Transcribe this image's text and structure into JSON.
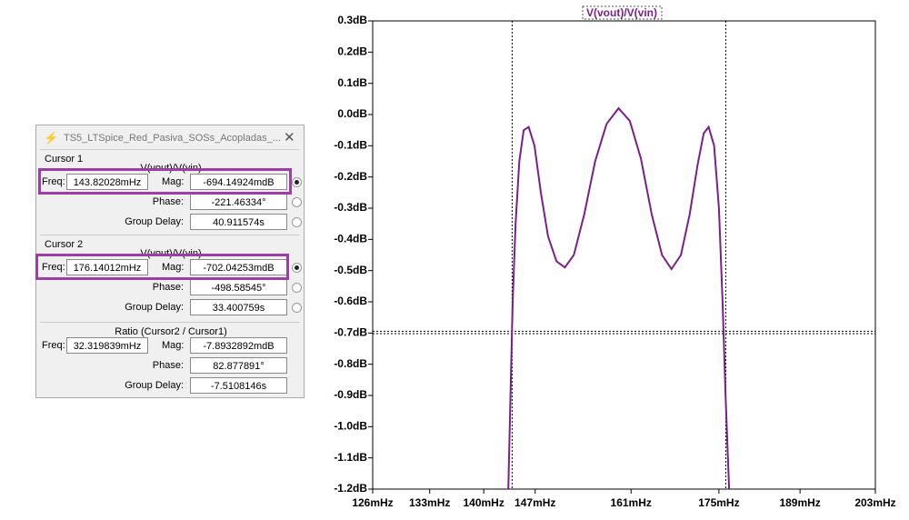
{
  "chart_data": {
    "type": "line",
    "title": "V(vout)/V(vin)",
    "x": [
      143.3,
      143.6,
      143.9,
      144.3,
      144.8,
      145.4,
      146.1,
      146.9,
      147.8,
      148.8,
      150.0,
      151.2,
      152.5,
      154.0,
      155.6,
      157.3,
      159.1,
      160.8,
      162.5,
      164.2,
      165.8,
      167.3,
      168.8,
      170.2,
      171.5,
      172.5,
      173.3,
      174.2,
      175.0,
      175.6,
      176.1,
      176.7
    ],
    "series": [
      {
        "name": "V(vout)/V(vin)",
        "color": "#7b1f8a",
        "values": [
          -1.2,
          -0.9,
          -0.6,
          -0.35,
          -0.15,
          -0.05,
          -0.04,
          -0.1,
          -0.25,
          -0.39,
          -0.47,
          -0.49,
          -0.45,
          -0.32,
          -0.15,
          -0.03,
          0.02,
          -0.02,
          -0.14,
          -0.32,
          -0.45,
          -0.495,
          -0.45,
          -0.32,
          -0.16,
          -0.06,
          -0.04,
          -0.1,
          -0.3,
          -0.6,
          -0.9,
          -1.2
        ]
      }
    ],
    "xscale": "log",
    "xlim": [
      126,
      203
    ],
    "xticks": [
      {
        "value": 126,
        "label": "126mHz"
      },
      {
        "value": 133,
        "label": "133mHz"
      },
      {
        "value": 140,
        "label": "140mHz"
      },
      {
        "value": 147,
        "label": "147mHz"
      },
      {
        "value": 161,
        "label": "161mHz"
      },
      {
        "value": 175,
        "label": "175mHz"
      },
      {
        "value": 189,
        "label": "189mHz"
      },
      {
        "value": 203,
        "label": "203mHz"
      }
    ],
    "ylim": [
      -1.2,
      0.3
    ],
    "yticks": [
      {
        "value": 0.3,
        "label": "0.3dB"
      },
      {
        "value": 0.2,
        "label": "0.2dB"
      },
      {
        "value": 0.1,
        "label": "0.1dB"
      },
      {
        "value": 0,
        "label": "0.0dB"
      },
      {
        "value": -0.1,
        "label": "-0.1dB"
      },
      {
        "value": -0.2,
        "label": "-0.2dB"
      },
      {
        "value": -0.3,
        "label": "-0.3dB"
      },
      {
        "value": -0.4,
        "label": "-0.4dB"
      },
      {
        "value": -0.5,
        "label": "-0.5dB"
      },
      {
        "value": -0.6,
        "label": "-0.6dB"
      },
      {
        "value": -0.7,
        "label": "-0.7dB"
      },
      {
        "value": -0.8,
        "label": "-0.8dB"
      },
      {
        "value": -0.9,
        "label": "-0.9dB"
      },
      {
        "value": -1.0,
        "label": "-1.0dB"
      },
      {
        "value": -1.1,
        "label": "-1.1dB"
      },
      {
        "value": -1.2,
        "label": "-1.2dB"
      }
    ],
    "cursors": [
      {
        "x": 143.82028,
        "y": -0.69414924
      },
      {
        "x": 176.14012,
        "y": -0.70204253
      }
    ]
  },
  "dialog": {
    "title": "TS5_LTSpice_Red_Pasiva_SOSs_Acopladas_...",
    "cursor1": {
      "label": "Cursor 1",
      "trace": "V(vout)/V(vin)",
      "freq_label": "Freq:",
      "freq": "143.82028mHz",
      "mag_label": "Mag:",
      "mag": "-694.14924mdB",
      "phase_label": "Phase:",
      "phase": "-221.46334°",
      "gd_label": "Group Delay:",
      "gd": "40.911574s"
    },
    "cursor2": {
      "label": "Cursor 2",
      "trace": "V(vout)/V(vin)",
      "freq_label": "Freq:",
      "freq": "176.14012mHz",
      "mag_label": "Mag:",
      "mag": "-702.04253mdB",
      "phase_label": "Phase:",
      "phase": "-498.58545°",
      "gd_label": "Group Delay:",
      "gd": "33.400759s"
    },
    "ratio": {
      "label": "Ratio (Cursor2 / Cursor1)",
      "freq_label": "Freq:",
      "freq": "32.319839mHz",
      "mag_label": "Mag:",
      "mag": "-7.8932892mdB",
      "phase_label": "Phase:",
      "phase": "82.877891°",
      "gd_label": "Group Delay:",
      "gd": "-7.5108146s"
    }
  }
}
